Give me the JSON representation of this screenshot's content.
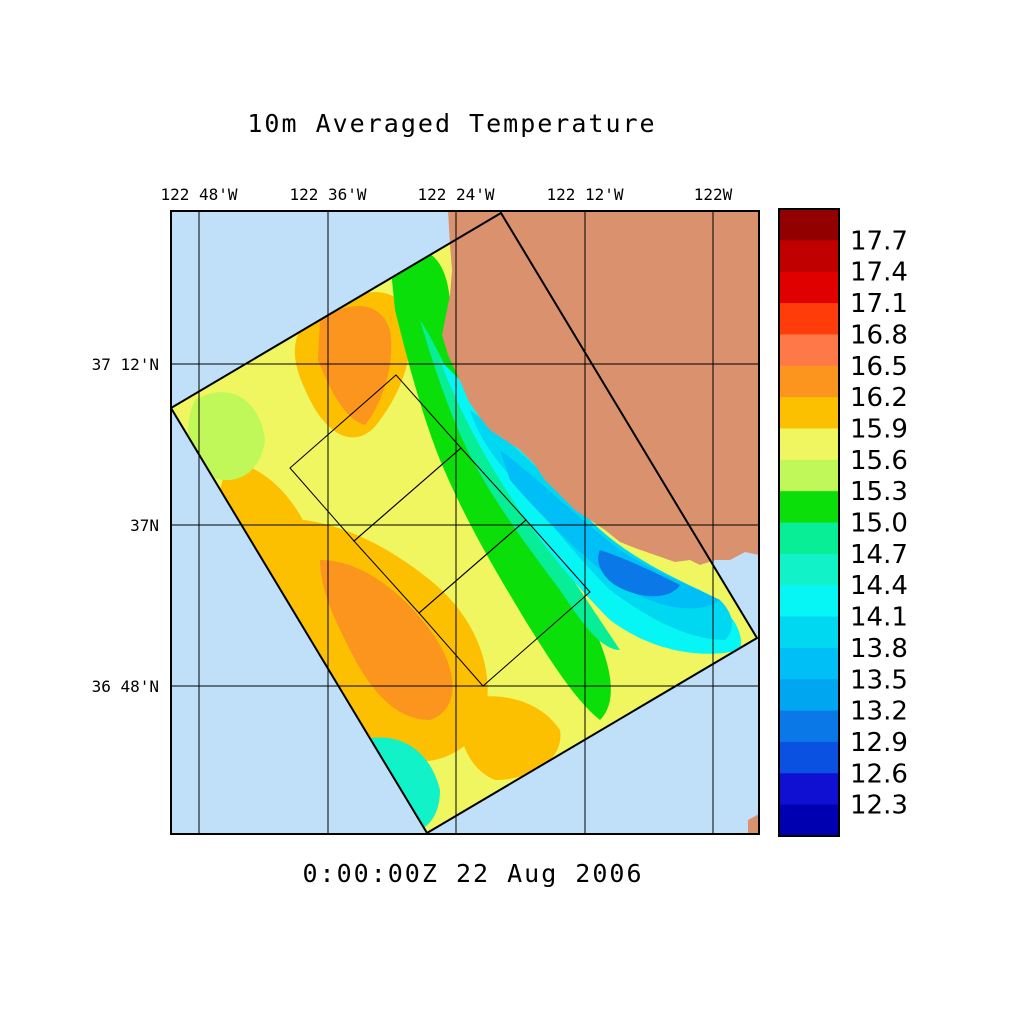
{
  "title": "10m Averaged Temperature",
  "timestamp": "0:00:00Z  22 Aug 2006",
  "map": {
    "lon_ticks": [
      "122 48'W",
      "122 36'W",
      "122 24'W",
      "122 12'W",
      "122W"
    ],
    "lat_ticks": [
      "37 12'N",
      "37N",
      "36 48'N"
    ],
    "colors": {
      "ocean": "#c0e0fa",
      "land": "#d9916e",
      "grid": "#000000"
    }
  },
  "colorbar": {
    "labels": [
      "17.7",
      "17.4",
      "17.1",
      "16.8",
      "16.5",
      "16.2",
      "15.9",
      "15.6",
      "15.3",
      "15.0",
      "14.7",
      "14.4",
      "14.1",
      "13.8",
      "13.5",
      "13.2",
      "12.9",
      "12.6",
      "12.3"
    ],
    "colors": [
      "#930000",
      "#c00000",
      "#e00000",
      "#ff3c0a",
      "#ff7848",
      "#fb951e",
      "#fdc000",
      "#f0f660",
      "#bff858",
      "#0adf0a",
      "#07ee96",
      "#12f2c8",
      "#06f6f6",
      "#00d8f2",
      "#00bef6",
      "#00a6f0",
      "#0a78e6",
      "#0a50e1",
      "#1010d3",
      "#0000b0"
    ]
  }
}
